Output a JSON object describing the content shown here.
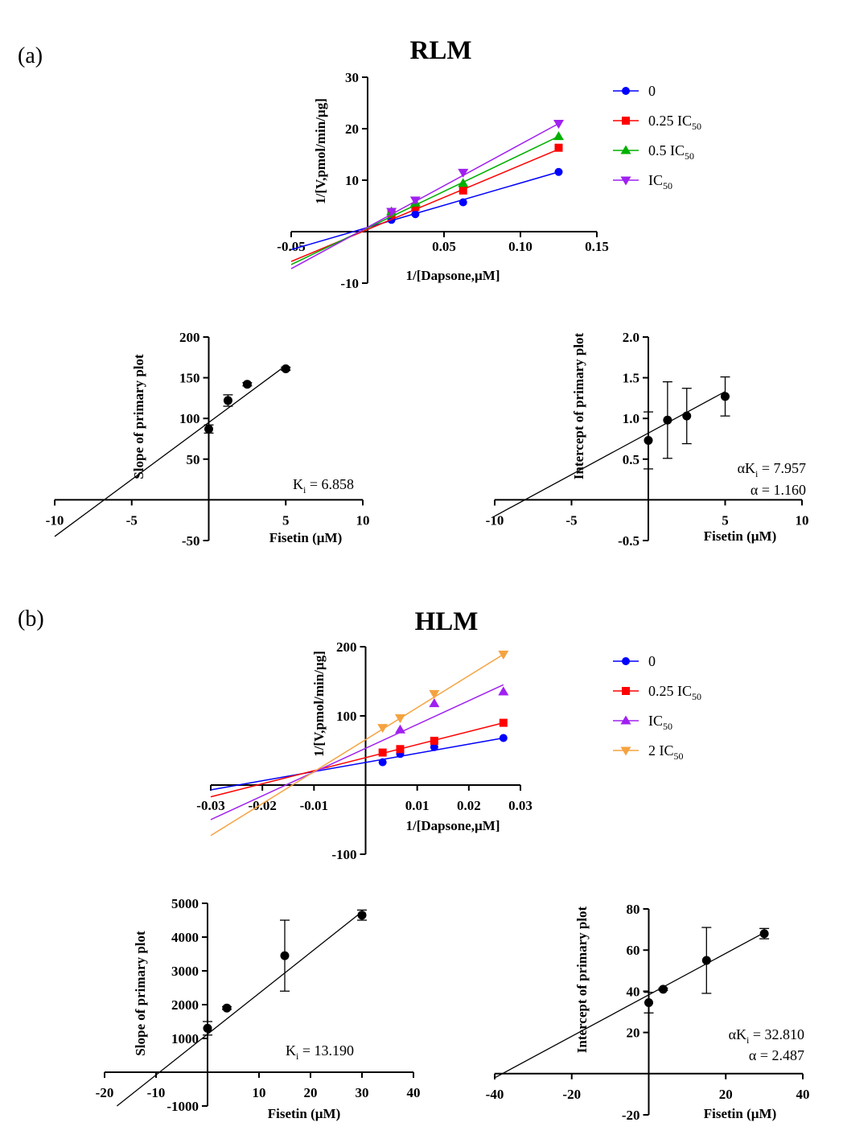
{
  "panels": [
    {
      "label": "(a)"
    },
    {
      "label": "(b)"
    }
  ],
  "chart_data": [
    {
      "type": "line",
      "subtype": "lineweaver-burk",
      "title": "RLM",
      "xlabel": "1/[Dapsone,µM]",
      "ylabel": "1/[V,pmol/min/µg]",
      "xlim": [
        -0.05,
        0.15
      ],
      "ylim": [
        -10,
        30
      ],
      "xticks": [
        -0.05,
        0.05,
        0.1,
        0.15
      ],
      "xtick_labels": [
        "-0.05",
        "0.05",
        "0.10",
        "0.15"
      ],
      "yticks": [
        -10,
        10,
        20,
        30
      ],
      "ytick_labels": [
        "-10",
        "10",
        "20",
        "30"
      ],
      "legend_position": "right",
      "series": [
        {
          "name": "0",
          "label_main": "0",
          "label_sub": "",
          "color": "#0000ff",
          "marker": "circle",
          "x": [
            0.0156,
            0.03125,
            0.0625,
            0.125
          ],
          "y": [
            2.3,
            3.4,
            5.7,
            11.6
          ],
          "fit": {
            "x": [
              -0.05,
              0.125
            ],
            "y": [
              -3.5,
              11.6
            ]
          }
        },
        {
          "name": "0.25 IC50",
          "label_main": "0.25 IC",
          "label_sub": "50",
          "color": "#ff0000",
          "marker": "square",
          "x": [
            0.0156,
            0.03125,
            0.0625,
            0.125
          ],
          "y": [
            3.4,
            4.8,
            8.0,
            16.3
          ],
          "fit": {
            "x": [
              -0.05,
              0.125
            ],
            "y": [
              -5.8,
              16.0
            ]
          }
        },
        {
          "name": "0.5 IC50",
          "label_main": "0.5 IC",
          "label_sub": "50",
          "color": "#00b000",
          "marker": "triangle-up",
          "x": [
            0.0156,
            0.03125,
            0.0625,
            0.125
          ],
          "y": [
            3.9,
            5.6,
            9.4,
            18.5
          ],
          "fit": {
            "x": [
              -0.05,
              0.125
            ],
            "y": [
              -6.4,
              18.5
            ]
          }
        },
        {
          "name": "IC50",
          "label_main": "IC",
          "label_sub": "50",
          "color": "#a020f0",
          "marker": "triangle-down",
          "x": [
            0.0156,
            0.03125,
            0.0625,
            0.125
          ],
          "y": [
            3.9,
            6.1,
            11.5,
            21.0
          ],
          "fit": {
            "x": [
              -0.05,
              0.125
            ],
            "y": [
              -7.2,
              21.0
            ]
          }
        }
      ]
    },
    {
      "type": "scatter",
      "subtype": "secondary-slope",
      "xlabel": "Fisetin (µM)",
      "ylabel": "Slope of primary plot",
      "xlim": [
        -10,
        10
      ],
      "ylim": [
        -50,
        200
      ],
      "xticks": [
        -10,
        -5,
        5,
        10
      ],
      "xtick_labels": [
        "-10",
        "-5",
        "5",
        "10"
      ],
      "yticks": [
        -50,
        50,
        100,
        150,
        200
      ],
      "ytick_labels": [
        "-50",
        "50",
        "100",
        "150",
        "200"
      ],
      "points": {
        "x": [
          0,
          1.25,
          2.5,
          5
        ],
        "y": [
          87,
          122,
          142,
          161
        ],
        "err": [
          5,
          7,
          2,
          2
        ]
      },
      "fit": {
        "x": [
          -10,
          5
        ],
        "y": [
          -45,
          165
        ]
      },
      "annotations": [
        {
          "main": "K",
          "sub": "i",
          "rest": " = 6.858"
        }
      ]
    },
    {
      "type": "scatter",
      "subtype": "secondary-intercept",
      "xlabel": "Fisetin (µM)",
      "ylabel": "Intercept of primary plot",
      "xlim": [
        -10,
        10
      ],
      "ylim": [
        -0.5,
        2.0
      ],
      "xticks": [
        -10,
        -5,
        5,
        10
      ],
      "xtick_labels": [
        "-10",
        "-5",
        "5",
        "10"
      ],
      "yticks": [
        -0.5,
        0.5,
        1.0,
        1.5,
        2.0
      ],
      "ytick_labels": [
        "-0.5",
        "0.5",
        "1.0",
        "1.5",
        "2.0"
      ],
      "points": {
        "x": [
          0,
          1.25,
          2.5,
          5
        ],
        "y": [
          0.73,
          0.98,
          1.03,
          1.27
        ],
        "err": [
          0.35,
          0.47,
          0.34,
          0.24
        ]
      },
      "fit": {
        "x": [
          -10,
          5
        ],
        "y": [
          -0.2,
          1.33
        ]
      },
      "annotations": [
        {
          "main": "αK",
          "sub": "i",
          "rest": " = 7.957"
        },
        {
          "main": "α = 1.160",
          "sub": "",
          "rest": ""
        }
      ]
    },
    {
      "type": "line",
      "subtype": "lineweaver-burk",
      "title": "HLM",
      "xlabel": "1/[Dapsone,µM]",
      "ylabel": "1/[V,pmol/min/µg]",
      "xlim": [
        -0.03,
        0.03
      ],
      "ylim": [
        -100,
        200
      ],
      "xticks": [
        -0.03,
        -0.02,
        -0.01,
        0.01,
        0.02,
        0.03
      ],
      "xtick_labels": [
        "-0.03",
        "-0.02",
        "-0.01",
        "0.01",
        "0.02",
        "0.03"
      ],
      "yticks": [
        -100,
        100,
        200
      ],
      "ytick_labels": [
        "-100",
        "100",
        "200"
      ],
      "legend_position": "right",
      "series": [
        {
          "name": "0",
          "label_main": "0",
          "label_sub": "",
          "color": "#0000ff",
          "marker": "circle",
          "x": [
            0.0033,
            0.0067,
            0.0133,
            0.0267
          ],
          "y": [
            33,
            45,
            55,
            68
          ],
          "fit": {
            "x": [
              -0.03,
              0.0267
            ],
            "y": [
              -7,
              68
            ]
          }
        },
        {
          "name": "0.25 IC50",
          "label_main": "0.25 IC",
          "label_sub": "50",
          "color": "#ff0000",
          "marker": "square",
          "x": [
            0.0033,
            0.0067,
            0.0133,
            0.0267
          ],
          "y": [
            47,
            52,
            64,
            90
          ],
          "fit": {
            "x": [
              -0.03,
              0.0267
            ],
            "y": [
              -17,
              90
            ]
          }
        },
        {
          "name": "IC50",
          "label_main": "IC",
          "label_sub": "50",
          "color": "#a020f0",
          "marker": "triangle-up",
          "x": [
            0.0067,
            0.0133,
            0.0267
          ],
          "y": [
            80,
            118,
            135
          ],
          "fit": {
            "x": [
              -0.03,
              0.0267
            ],
            "y": [
              -50,
              145
            ]
          }
        },
        {
          "name": "2 IC50",
          "label_main": "2 IC",
          "label_sub": "50",
          "color": "#f5a340",
          "marker": "triangle-down",
          "x": [
            0.0033,
            0.0067,
            0.0133,
            0.0267
          ],
          "y": [
            83,
            97,
            132,
            189
          ],
          "fit": {
            "x": [
              -0.03,
              0.0267
            ],
            "y": [
              -73,
              189
            ]
          }
        }
      ]
    },
    {
      "type": "scatter",
      "subtype": "secondary-slope",
      "xlabel": "Fisetin (µM)",
      "ylabel": "Slope of primary plot",
      "xlim": [
        -20,
        40
      ],
      "ylim": [
        -1000,
        5000
      ],
      "xticks": [
        -20,
        -10,
        10,
        20,
        30,
        40
      ],
      "xtick_labels": [
        "-20",
        "-10",
        "10",
        "20",
        "30",
        "40"
      ],
      "yticks": [
        -1000,
        1000,
        2000,
        3000,
        4000,
        5000
      ],
      "ytick_labels": [
        "-1000",
        "1000",
        "2000",
        "3000",
        "4000",
        "5000"
      ],
      "points": {
        "x": [
          0,
          3.75,
          15,
          30
        ],
        "y": [
          1300,
          1900,
          3450,
          4650
        ],
        "err": [
          200,
          40,
          1050,
          150
        ]
      },
      "fit": {
        "x": [
          -17.6,
          30
        ],
        "y": [
          -1000,
          4750
        ]
      },
      "annotations": [
        {
          "main": "K",
          "sub": "i",
          "rest": " = 13.190"
        }
      ]
    },
    {
      "type": "scatter",
      "subtype": "secondary-intercept",
      "xlabel": "Fisetin (µM)",
      "ylabel": "Intercept of primary plot",
      "xlim": [
        -40,
        40
      ],
      "ylim": [
        -20,
        80
      ],
      "xticks": [
        -40,
        -20,
        20,
        40
      ],
      "xtick_labels": [
        "-40",
        "-20",
        "20",
        "40"
      ],
      "yticks": [
        -20,
        20,
        40,
        60,
        80
      ],
      "ytick_labels": [
        "-20",
        "20",
        "40",
        "60",
        "80"
      ],
      "points": {
        "x": [
          0,
          3.75,
          15,
          30
        ],
        "y": [
          34.5,
          41,
          55,
          68
        ],
        "err": [
          5,
          0.5,
          16,
          2.5
        ]
      },
      "fit": {
        "x": [
          -40,
          30
        ],
        "y": [
          -2,
          68.5
        ]
      },
      "annotations": [
        {
          "main": "αK",
          "sub": "i",
          "rest": " = 32.810"
        },
        {
          "main": "α = 2.487",
          "sub": "",
          "rest": ""
        }
      ]
    }
  ]
}
